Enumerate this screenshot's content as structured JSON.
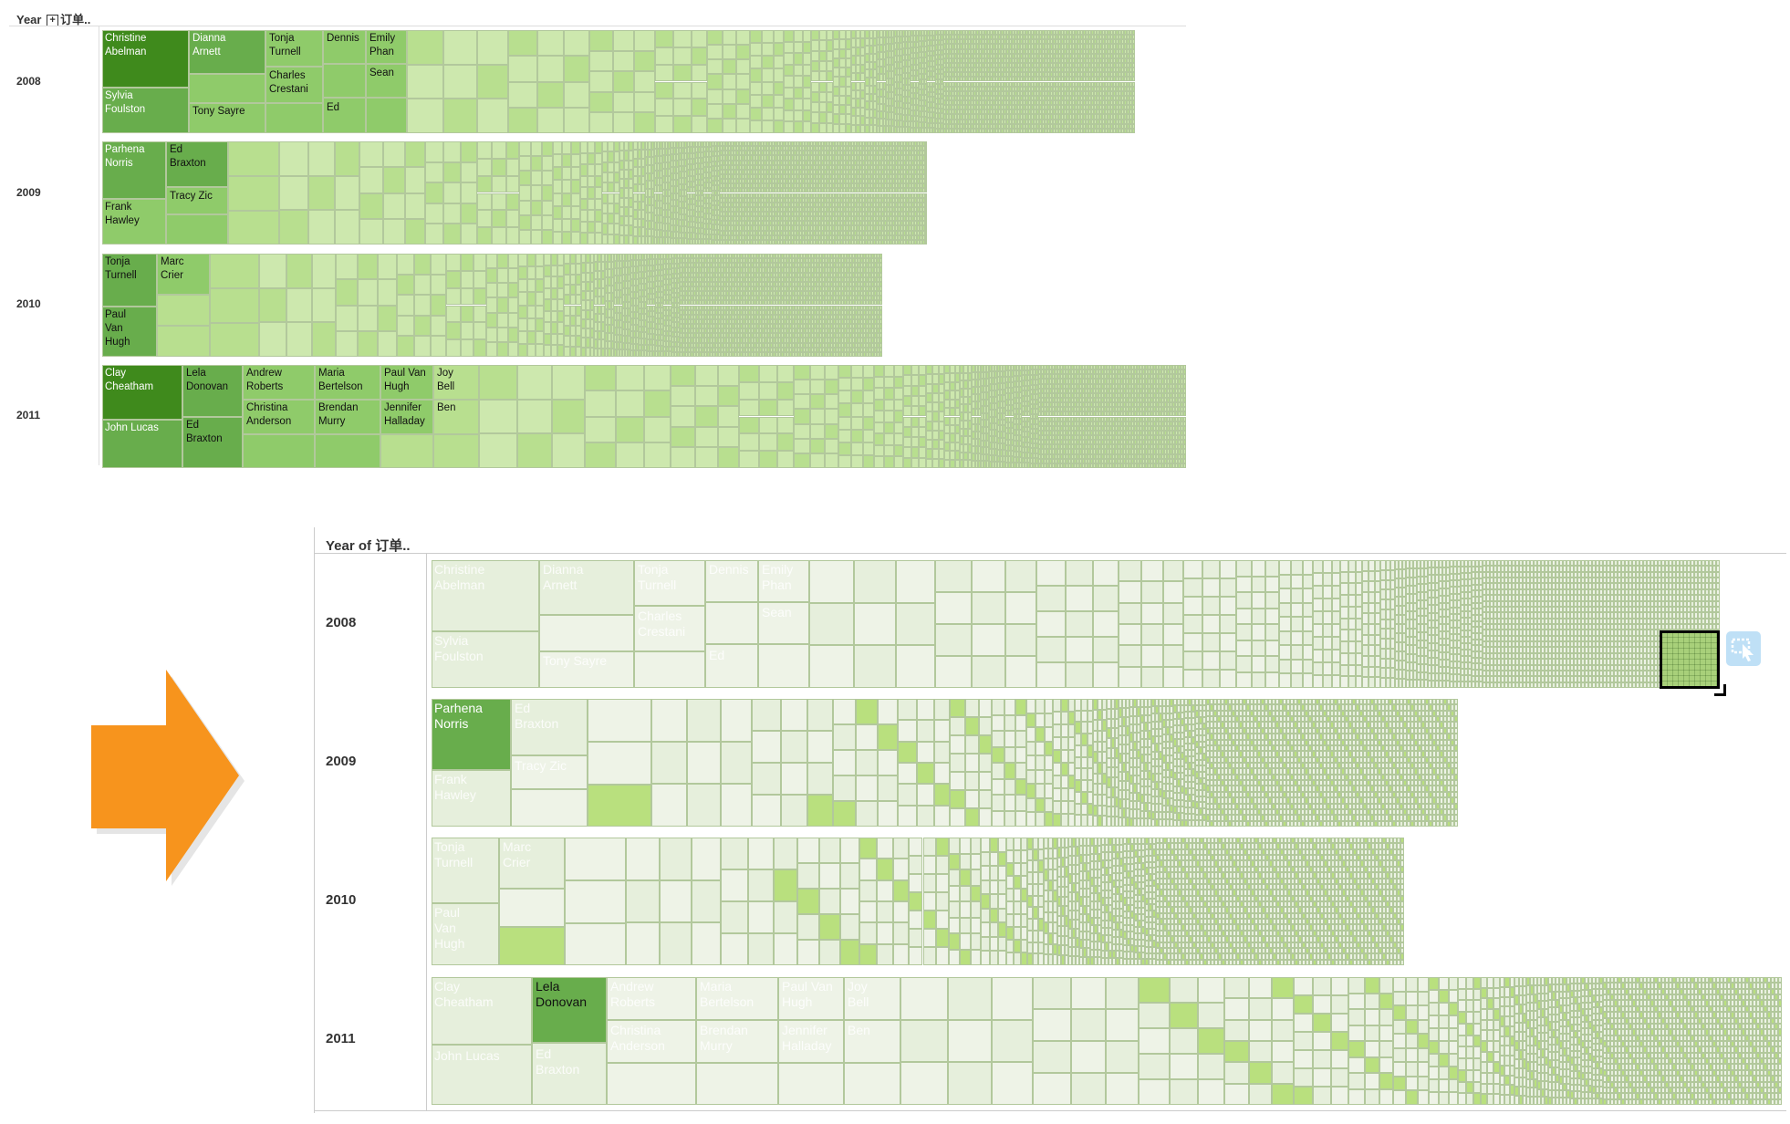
{
  "top": {
    "header": {
      "prefix": "Year",
      "plus": "+",
      "suffix": "订单.."
    },
    "years": [
      "2008",
      "2009",
      "2010",
      "2011"
    ],
    "labels": {
      "y2008": [
        "Christine\nAbelman",
        "Dianna\nArnett",
        "Tonja\nTurnell",
        "Dennis",
        "Emily\nPhan",
        "Sylvia\nFoulston",
        "Charles\nCrestani",
        "Sean",
        "Tony Sayre",
        "Ed"
      ],
      "y2009": [
        "Parhena\nNorris",
        "Ed\nBraxton",
        "Frank\nHawley",
        "Tracy Zic"
      ],
      "y2010": [
        "Tonja\nTurnell",
        "Marc\nCrier",
        "Paul\nVan\nHugh"
      ],
      "y2011": [
        "Clay\nCheatham",
        "Lela\nDonovan",
        "Andrew\nRoberts",
        "Maria\nBertelson",
        "Paul Van\nHugh",
        "Joy\nBell",
        "Christina\nAnderson",
        "Brendan\nMurry",
        "Jennifer\nHalladay",
        "Ben",
        "John Lucas",
        "Ed\nBraxton"
      ]
    }
  },
  "bottom": {
    "header": "Year of 订单..",
    "years": [
      "2008",
      "2009",
      "2010",
      "2011"
    ],
    "labels": {
      "y2008": [
        "Christine\nAbelman",
        "Dianna\nArnett",
        "Tonja\nTurnell",
        "Dennis",
        "Emily\nPhan",
        "Charles\nCrestani",
        "Sean",
        "Sylvia\nFoulston",
        "Tony Sayre",
        "Ed"
      ],
      "y2009": [
        "Parhena\nNorris",
        "Ed\nBraxton",
        "Tracy Zic",
        "Frank\nHawley"
      ],
      "y2010": [
        "Tonja\nTurnell",
        "Marc\nCrier",
        "Paul\nVan\nHugh"
      ],
      "y2011": [
        "Clay\nCheatham",
        "Lela\nDonovan",
        "Andrew\nRoberts",
        "Maria\nBertelson",
        "Paul Van\nHugh",
        "Joy\nBell",
        "Christina\nAnderson",
        "Brendan\nMurry",
        "Jennifer\nHalladay",
        "Ben",
        "John Lucas",
        "Ed\nBraxton"
      ]
    }
  },
  "colors": {
    "dark": "#3f8a1c",
    "mid": "#68ad4c",
    "light": "#8fcb6a",
    "lighter": "#b8df8f",
    "pale": "#cde8ae",
    "faded": "#e6efdc",
    "faded2": "#eef3e7",
    "selected": "#b9e07e",
    "arrow": "#f7941d"
  },
  "cursor_icon": "selection-cursor-icon"
}
